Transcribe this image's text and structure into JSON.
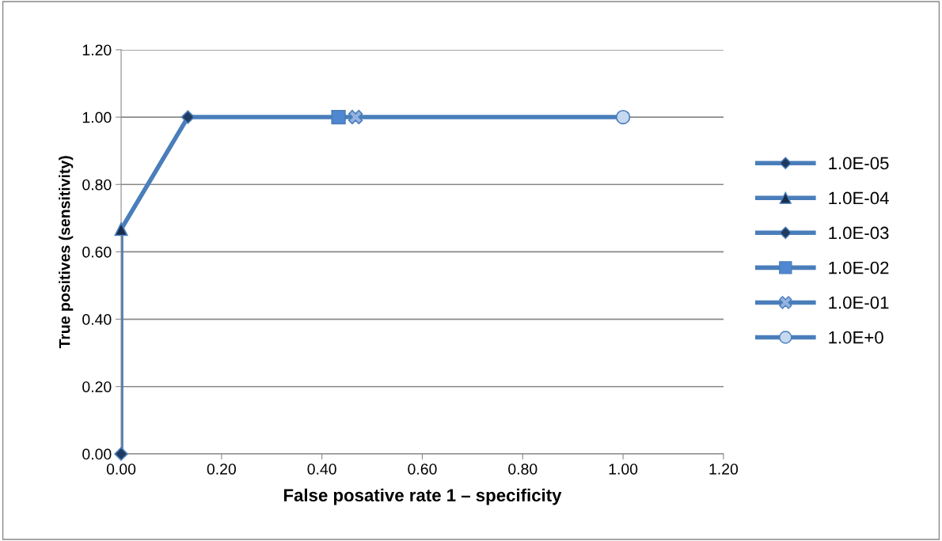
{
  "chart_data": {
    "type": "scatter",
    "xlabel": "False posative rate 1 – specificity",
    "ylabel": "True positives (sensitivity)",
    "xlim": [
      0,
      1.2
    ],
    "ylim": [
      0,
      1.2
    ],
    "xticks": [
      {
        "value": 0,
        "label": "0.00"
      },
      {
        "value": 0.2,
        "label": "0.20"
      },
      {
        "value": 0.4,
        "label": "0.40"
      },
      {
        "value": 0.6,
        "label": "0.60"
      },
      {
        "value": 0.8,
        "label": "0.80"
      },
      {
        "value": 1.0,
        "label": "1.00"
      },
      {
        "value": 1.2,
        "label": "1.20"
      }
    ],
    "yticks": [
      {
        "value": 0,
        "label": "0.00"
      },
      {
        "value": 0.2,
        "label": "0.20"
      },
      {
        "value": 0.4,
        "label": "0.40"
      },
      {
        "value": 0.6,
        "label": "0.60"
      },
      {
        "value": 0.8,
        "label": "0.80"
      },
      {
        "value": 1.0,
        "label": "1.00"
      },
      {
        "value": 1.2,
        "label": "1.20"
      }
    ],
    "grid": "y",
    "legend": "right",
    "series": [
      {
        "type": "line",
        "color": "#4a7ebb",
        "marker": "none",
        "x": [
          0,
          0,
          0.133,
          0.433,
          0.467,
          1.0
        ],
        "values": [
          0,
          0.667,
          1.0,
          1.0,
          1.0,
          1.0
        ]
      },
      {
        "name": "1.0E-05",
        "color": "#1f3a60",
        "marker": "diamond",
        "x": [
          0
        ],
        "values": [
          0
        ]
      },
      {
        "name": "1.0E-04",
        "color": "#1a2d4d",
        "marker": "triangle",
        "x": [
          0
        ],
        "values": [
          0.667
        ]
      },
      {
        "name": "1.0E-03",
        "color": "#1f3a60",
        "marker": "diamond",
        "x": [
          0.133
        ],
        "values": [
          1.0
        ]
      },
      {
        "name": "1.0E-02",
        "color": "#4f87d0",
        "marker": "square",
        "x": [
          0.433
        ],
        "values": [
          1.0
        ]
      },
      {
        "name": "1.0E-01",
        "color": "#95b3e0",
        "marker": "cross",
        "x": [
          0.467
        ],
        "values": [
          1.0
        ]
      },
      {
        "name": "1.0E+0",
        "color": "#c6d9f1",
        "marker": "circle",
        "x": [
          1.0
        ],
        "values": [
          1.0
        ]
      }
    ]
  }
}
